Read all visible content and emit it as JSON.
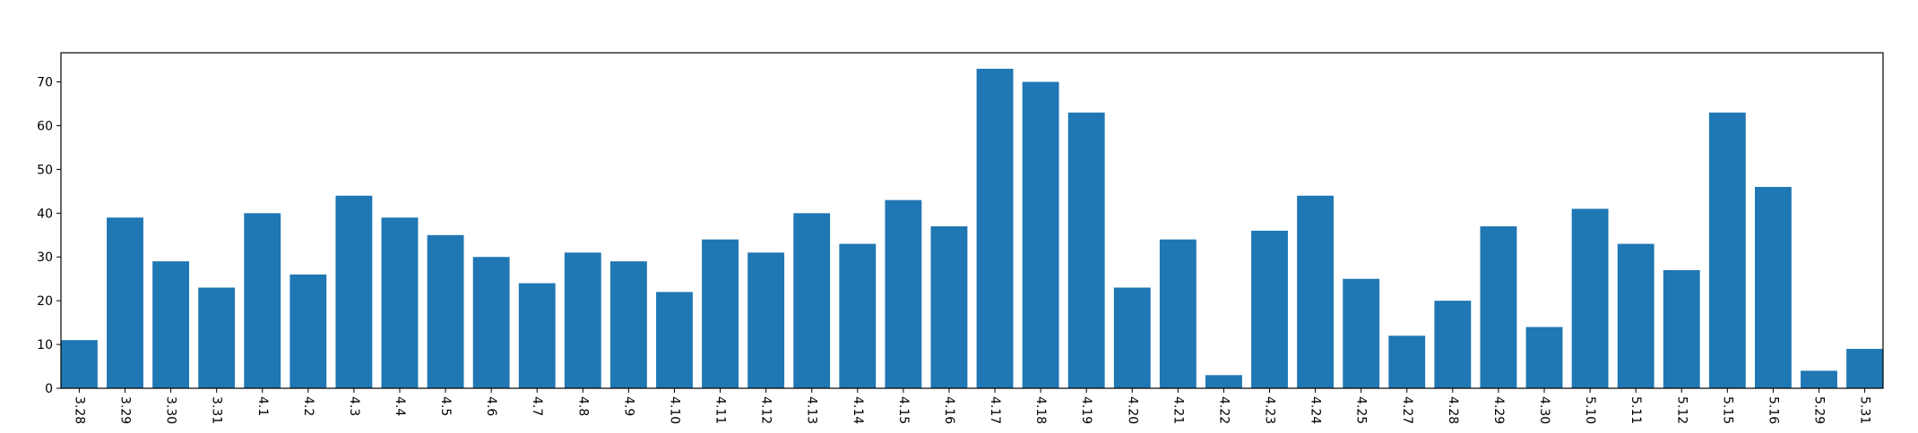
{
  "chart_data": {
    "type": "bar",
    "categories": [
      "3.28",
      "3.29",
      "3.30",
      "3.31",
      "4.1",
      "4.2",
      "4.3",
      "4.4",
      "4.5",
      "4.6",
      "4.7",
      "4.8",
      "4.9",
      "4.10",
      "4.11",
      "4.12",
      "4.13",
      "4.14",
      "4.15",
      "4.16",
      "4.17",
      "4.18",
      "4.19",
      "4.20",
      "4.21",
      "4.22",
      "4.23",
      "4.24",
      "4.25",
      "4.27",
      "4.28",
      "4.29",
      "4.30",
      "5.10",
      "5.11",
      "5.12",
      "5.15",
      "5.16",
      "5.29",
      "5.31"
    ],
    "values": [
      11,
      39,
      29,
      23,
      40,
      26,
      44,
      39,
      35,
      30,
      24,
      31,
      29,
      22,
      34,
      31,
      40,
      33,
      43,
      37,
      73,
      70,
      63,
      23,
      34,
      3,
      36,
      44,
      25,
      12,
      20,
      37,
      14,
      41,
      33,
      27,
      63,
      46,
      4,
      9
    ],
    "title": "",
    "xlabel": "",
    "ylabel": "",
    "ylim": [
      0,
      76.65
    ],
    "yticks": [
      0,
      10,
      20,
      30,
      40,
      50,
      60,
      70
    ],
    "bar_color": "#1f77b4",
    "grid": false,
    "legend": "none"
  }
}
